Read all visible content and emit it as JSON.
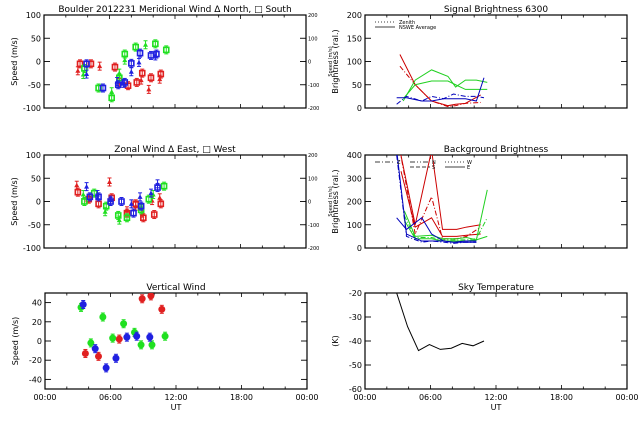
{
  "chart_data": [
    {
      "id": "meridional",
      "type": "scatter",
      "title": "Boulder   2012231     Meridional Wind   Δ North, □ South",
      "xlabel": "",
      "ylabel": "Speed (m/s)",
      "right_ylabel": "Speed (m/s)",
      "ylim": [
        -100,
        100
      ],
      "right_ylim": [
        -200,
        200
      ],
      "yticks": [
        "-100",
        "-50",
        "0",
        "50",
        "100"
      ],
      "right_yticks": [
        "-200",
        "-100",
        "0",
        "100",
        "200"
      ],
      "xlim": [
        0,
        24
      ],
      "series": [
        {
          "name": "red-north",
          "color": "#e02020",
          "marker": "triangle",
          "points": [
            [
              3.1,
              -20
            ],
            [
              5.1,
              -10
            ],
            [
              6.9,
              -45
            ],
            [
              8.9,
              -40
            ],
            [
              9.6,
              -60
            ],
            [
              10.6,
              -38
            ]
          ]
        },
        {
          "name": "red-south",
          "color": "#e02020",
          "marker": "square",
          "points": [
            [
              3.3,
              -5
            ],
            [
              4.3,
              -5
            ],
            [
              6.5,
              -12
            ],
            [
              7.7,
              -52
            ],
            [
              8.5,
              -45
            ],
            [
              9.0,
              -25
            ],
            [
              9.8,
              -35
            ],
            [
              10.7,
              -27
            ]
          ]
        },
        {
          "name": "green-north",
          "color": "#20e020",
          "marker": "triangle",
          "points": [
            [
              3.6,
              -28
            ],
            [
              6.2,
              -65
            ],
            [
              6.9,
              -25
            ],
            [
              7.4,
              3
            ],
            [
              9.3,
              36
            ]
          ]
        },
        {
          "name": "green-south",
          "color": "#20e020",
          "marker": "square",
          "points": [
            [
              3.7,
              -15
            ],
            [
              5.0,
              -57
            ],
            [
              6.2,
              -78
            ],
            [
              6.9,
              -35
            ],
            [
              7.4,
              16
            ],
            [
              8.4,
              31
            ],
            [
              10.2,
              38
            ],
            [
              11.2,
              25
            ]
          ]
        },
        {
          "name": "blue-north",
          "color": "#2020e0",
          "marker": "triangle",
          "points": [
            [
              3.9,
              -27
            ],
            [
              6.7,
              -43
            ],
            [
              7.3,
              -47
            ],
            [
              8.0,
              -22
            ],
            [
              8.7,
              -2
            ],
            [
              10.2,
              12
            ]
          ]
        },
        {
          "name": "blue-south",
          "color": "#2020e0",
          "marker": "square",
          "points": [
            [
              3.9,
              -5
            ],
            [
              5.4,
              -57
            ],
            [
              6.8,
              -50
            ],
            [
              7.4,
              -45
            ],
            [
              8.0,
              -4
            ],
            [
              8.8,
              18
            ],
            [
              9.8,
              13
            ],
            [
              10.3,
              16
            ]
          ]
        }
      ]
    },
    {
      "id": "signal",
      "type": "line",
      "title": "Signal Brightness      6300",
      "ylabel": "Brightness (ral.)",
      "ylim": [
        0,
        200
      ],
      "yticks": [
        "0",
        "50",
        "100",
        "150",
        "200"
      ],
      "xlim": [
        0,
        24
      ],
      "legend": [
        {
          "label": "Zenith",
          "style": "dotted"
        },
        {
          "label": "NSWE Average",
          "style": "solid"
        }
      ],
      "legend_position": "top-left",
      "series": [
        {
          "name": "red-1",
          "color": "#cc0000",
          "x": [
            3.2,
            4.6,
            6.1,
            7.6,
            8.3,
            9.2,
            10.6
          ],
          "y": [
            115,
            50,
            15,
            5,
            8,
            10,
            28
          ]
        },
        {
          "name": "red-2",
          "color": "#cc0000",
          "x": [
            3.2,
            4.6,
            6.1,
            7.6,
            8.3,
            9.2,
            10.6
          ],
          "y": [
            90,
            50,
            15,
            3,
            5,
            10,
            12
          ]
        },
        {
          "name": "green-1",
          "color": "#20d020",
          "x": [
            3.5,
            4.6,
            6.1,
            7.6,
            8.3,
            9.2,
            10.2,
            11.2
          ],
          "y": [
            15,
            60,
            82,
            68,
            45,
            60,
            60,
            55
          ]
        },
        {
          "name": "green-2",
          "color": "#20d020",
          "x": [
            3.5,
            4.6,
            6.1,
            7.6,
            8.3,
            9.2,
            10.2,
            11.2
          ],
          "y": [
            20,
            50,
            58,
            58,
            50,
            40,
            40,
            40
          ]
        },
        {
          "name": "blue-1",
          "color": "#0000bb",
          "x": [
            2.9,
            3.8,
            5.2,
            6.1,
            7.2,
            8.1,
            9.2,
            10.2,
            10.9
          ],
          "y": [
            8,
            25,
            15,
            25,
            20,
            30,
            25,
            25,
            22
          ]
        },
        {
          "name": "blue-2",
          "color": "#0000bb",
          "x": [
            2.9,
            3.8,
            5.2,
            6.1,
            7.2,
            8.1,
            9.2,
            10.2,
            10.9
          ],
          "y": [
            22,
            22,
            15,
            15,
            20,
            20,
            20,
            15,
            65
          ]
        }
      ]
    },
    {
      "id": "zonal",
      "type": "scatter",
      "title": "Zonal Wind       Δ East, □ West",
      "ylabel": "Speed (m/s)",
      "right_ylabel": "Speed (m/s)",
      "ylim": [
        -100,
        100
      ],
      "right_ylim": [
        -200,
        200
      ],
      "yticks": [
        "-100",
        "-50",
        "0",
        "50",
        "100"
      ],
      "right_yticks": [
        "-200",
        "-100",
        "0",
        "100",
        "200"
      ],
      "xlim": [
        0,
        24
      ],
      "series": [
        {
          "name": "red-east",
          "color": "#e02020",
          "marker": "triangle",
          "points": [
            [
              3.0,
              35
            ],
            [
              6.0,
              42
            ],
            [
              7.6,
              -20
            ],
            [
              8.4,
              -10
            ],
            [
              9.0,
              -25
            ],
            [
              9.9,
              2
            ],
            [
              10.6,
              8
            ]
          ]
        },
        {
          "name": "red-west",
          "color": "#e02020",
          "marker": "square",
          "points": [
            [
              3.1,
              20
            ],
            [
              4.1,
              5
            ],
            [
              5.0,
              -5
            ],
            [
              6.2,
              8
            ],
            [
              7.6,
              -25
            ],
            [
              8.4,
              -5
            ],
            [
              9.1,
              -35
            ],
            [
              10.1,
              -28
            ],
            [
              10.7,
              -5
            ]
          ]
        },
        {
          "name": "green-east",
          "color": "#20e020",
          "marker": "triangle",
          "points": [
            [
              3.6,
              15
            ],
            [
              5.6,
              -22
            ],
            [
              6.9,
              -40
            ],
            [
              8.9,
              -15
            ],
            [
              10.0,
              15
            ]
          ]
        },
        {
          "name": "green-west",
          "color": "#20e020",
          "marker": "square",
          "points": [
            [
              3.7,
              0
            ],
            [
              4.6,
              18
            ],
            [
              5.7,
              -10
            ],
            [
              6.8,
              -30
            ],
            [
              7.6,
              -35
            ],
            [
              8.9,
              -18
            ],
            [
              9.6,
              5
            ],
            [
              11.0,
              33
            ]
          ]
        },
        {
          "name": "blue-east",
          "color": "#2020e0",
          "marker": "triangle",
          "points": [
            [
              3.9,
              32
            ],
            [
              4.9,
              15
            ],
            [
              6.1,
              3
            ],
            [
              8.0,
              -5
            ],
            [
              8.8,
              10
            ],
            [
              9.8,
              18
            ],
            [
              10.4,
              38
            ]
          ]
        },
        {
          "name": "blue-west",
          "color": "#2020e0",
          "marker": "square",
          "points": [
            [
              4.2,
              10
            ],
            [
              5.0,
              10
            ],
            [
              6.1,
              0
            ],
            [
              7.1,
              0
            ],
            [
              8.2,
              -25
            ],
            [
              8.9,
              -10
            ],
            [
              10.4,
              30
            ]
          ]
        }
      ]
    },
    {
      "id": "background",
      "type": "line",
      "title": "Background Brightness",
      "ylabel": "Brightness (ral.)",
      "ylim": [
        0,
        400
      ],
      "yticks": [
        "0",
        "100",
        "200",
        "300",
        "400"
      ],
      "xlim": [
        0,
        24
      ],
      "legend": [
        {
          "label": "Z",
          "style": "dash-dot"
        },
        {
          "label": "N",
          "style": "dash-dot-dot"
        },
        {
          "label": "S",
          "style": "dashed"
        },
        {
          "label": "W",
          "style": "dotted"
        },
        {
          "label": "E",
          "style": "solid"
        }
      ],
      "legend_position": "top-left",
      "series": [
        {
          "name": "red-1",
          "color": "#cc0000",
          "x": [
            3.2,
            4.6,
            6.1,
            7.1,
            8.4,
            9.3,
            10.6
          ],
          "y": [
            420,
            100,
            420,
            80,
            80,
            90,
            100
          ]
        },
        {
          "name": "red-2",
          "color": "#cc0000",
          "x": [
            3.2,
            4.6,
            6.1,
            7.1,
            8.4,
            9.3,
            10.6
          ],
          "y": [
            420,
            60,
            220,
            40,
            40,
            50,
            90
          ]
        },
        {
          "name": "red-3",
          "color": "#cc0000",
          "x": [
            3.3,
            4.6,
            6.1,
            7.1,
            8.4,
            9.3,
            10.6
          ],
          "y": [
            330,
            90,
            130,
            50,
            50,
            55,
            60
          ]
        },
        {
          "name": "green-1",
          "color": "#20d020",
          "x": [
            3.6,
            4.6,
            6.1,
            7.1,
            8.4,
            9.3,
            10.2,
            11.2
          ],
          "y": [
            160,
            50,
            55,
            40,
            40,
            45,
            35,
            250
          ]
        },
        {
          "name": "green-2",
          "color": "#20d020",
          "x": [
            3.6,
            4.6,
            6.1,
            7.1,
            8.4,
            9.3,
            10.2,
            11.2
          ],
          "y": [
            140,
            45,
            45,
            35,
            35,
            35,
            40,
            130
          ]
        },
        {
          "name": "green-3",
          "color": "#20d020",
          "x": [
            3.6,
            4.6,
            6.1,
            7.1,
            8.4,
            9.3,
            10.2,
            11.2
          ],
          "y": [
            120,
            40,
            40,
            30,
            30,
            30,
            35,
            50
          ]
        },
        {
          "name": "blue-1",
          "color": "#0000bb",
          "x": [
            2.9,
            3.8,
            5.2,
            6.1,
            7.2,
            8.1,
            9.2,
            10.2
          ],
          "y": [
            420,
            60,
            30,
            30,
            30,
            25,
            30,
            30
          ]
        },
        {
          "name": "blue-2",
          "color": "#0000bb",
          "x": [
            2.9,
            3.8,
            5.2,
            6.1,
            7.2,
            8.1,
            9.2,
            10.2
          ],
          "y": [
            400,
            50,
            25,
            30,
            25,
            20,
            25,
            25
          ]
        },
        {
          "name": "blue-3",
          "color": "#0000bb",
          "x": [
            2.9,
            3.8,
            5.2,
            6.1,
            7.2,
            8.1,
            9.2,
            10.2
          ],
          "y": [
            130,
            80,
            130,
            60,
            30,
            25,
            25,
            25
          ]
        }
      ]
    },
    {
      "id": "vertical",
      "type": "scatter",
      "title": "Vertical Wind",
      "xlabel": "UT",
      "ylabel": "Speed (m/s)",
      "ylim": [
        -50,
        50
      ],
      "yticks": [
        "-40",
        "-20",
        "0",
        "20",
        "40"
      ],
      "xlim": [
        0,
        24
      ],
      "xticks": [
        "00:00",
        "06:00",
        "12:00",
        "18:00",
        "00:00"
      ],
      "series": [
        {
          "name": "red",
          "color": "#e02020",
          "marker": "circle",
          "points": [
            [
              3.7,
              -13
            ],
            [
              4.9,
              -16
            ],
            [
              6.8,
              2
            ],
            [
              8.9,
              44
            ],
            [
              9.7,
              47
            ],
            [
              10.7,
              33
            ]
          ]
        },
        {
          "name": "green",
          "color": "#20e020",
          "marker": "circle",
          "points": [
            [
              3.3,
              35
            ],
            [
              4.2,
              -2
            ],
            [
              5.3,
              25
            ],
            [
              6.2,
              3
            ],
            [
              7.2,
              18
            ],
            [
              8.2,
              9
            ],
            [
              8.8,
              -4
            ],
            [
              9.8,
              -4
            ],
            [
              11.0,
              5
            ]
          ]
        },
        {
          "name": "blue",
          "color": "#2020e0",
          "marker": "circle",
          "points": [
            [
              3.5,
              38
            ],
            [
              4.6,
              -8
            ],
            [
              5.6,
              -28
            ],
            [
              6.5,
              -18
            ],
            [
              7.5,
              4
            ],
            [
              8.4,
              5
            ],
            [
              9.6,
              4
            ]
          ]
        }
      ]
    },
    {
      "id": "skytemp",
      "type": "line",
      "title": "Sky Temperature",
      "xlabel": "UT",
      "ylabel": "(K)",
      "ylim": [
        -60,
        -20
      ],
      "yticks": [
        "-60",
        "-50",
        "-40",
        "-30",
        "-20"
      ],
      "xlim": [
        0,
        24
      ],
      "xticks": [
        "00:00",
        "06:00",
        "12:00",
        "18:00",
        "00:00"
      ],
      "series": [
        {
          "name": "temperature",
          "color": "#000000",
          "x": [
            2.9,
            3.9,
            4.9,
            5.9,
            6.9,
            7.9,
            8.9,
            9.9,
            10.9
          ],
          "y": [
            -20,
            -34,
            -44,
            -41.5,
            -43.5,
            -43,
            -41,
            -42,
            -40
          ]
        }
      ]
    }
  ]
}
